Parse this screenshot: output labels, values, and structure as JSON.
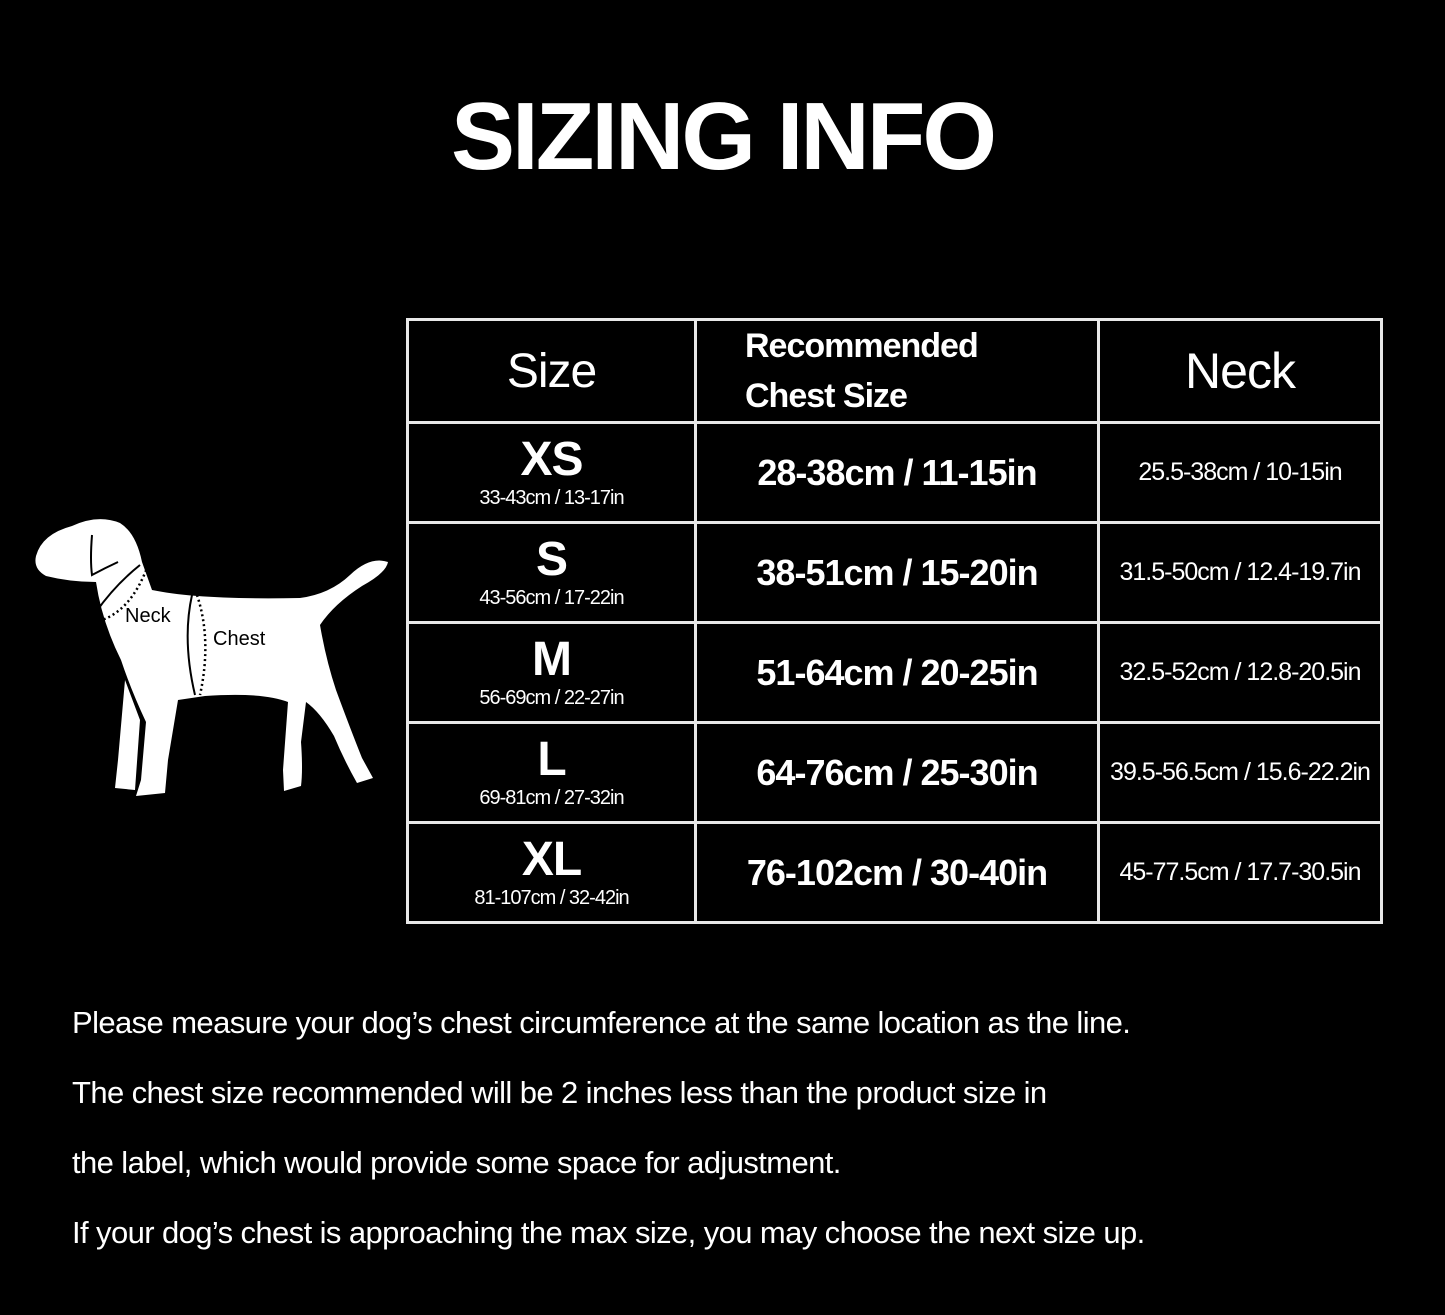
{
  "title": "SIZING INFO",
  "diagram": {
    "neck_label": "Neck",
    "chest_label": "Chest"
  },
  "table": {
    "headers": {
      "size": "Size",
      "chest_line1": "Recommended",
      "chest_line2": "Chest Size",
      "neck": "Neck"
    },
    "rows": [
      {
        "size": "XS",
        "product_size": "33-43cm / 13-17in",
        "chest": "28-38cm / 11-15in",
        "neck": "25.5-38cm / 10-15in"
      },
      {
        "size": "S",
        "product_size": "43-56cm / 17-22in",
        "chest": "38-51cm / 15-20in",
        "neck": "31.5-50cm / 12.4-19.7in"
      },
      {
        "size": "M",
        "product_size": "56-69cm / 22-27in",
        "chest": "51-64cm / 20-25in",
        "neck": "32.5-52cm / 12.8-20.5in"
      },
      {
        "size": "L",
        "product_size": "69-81cm / 27-32in",
        "chest": "64-76cm / 25-30in",
        "neck": "39.5-56.5cm / 15.6-22.2in"
      },
      {
        "size": "XL",
        "product_size": "81-107cm / 32-42in",
        "chest": "76-102cm / 30-40in",
        "neck": "45-77.5cm / 17.7-30.5in"
      }
    ]
  },
  "notes": [
    "Please measure your dog’s chest circumference at the same location as the line.",
    "The chest size recommended will be 2 inches less than the product size in",
    "the label, which would provide some space for adjustment.",
    "If your dog’s chest is approaching the max size, you may choose the next size up."
  ]
}
